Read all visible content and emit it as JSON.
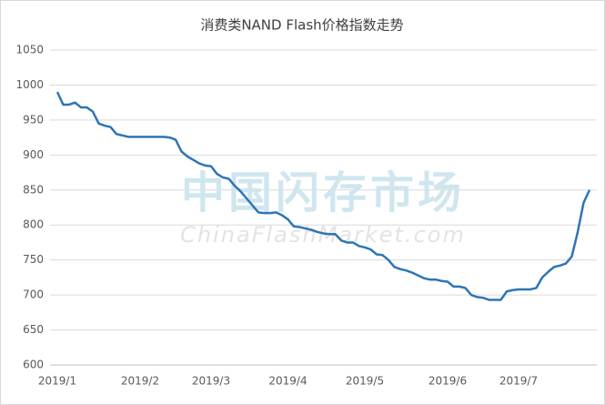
{
  "chart_data": {
    "type": "line",
    "title": "消费类NAND Flash价格指数走势",
    "watermark": "中国闪存市场",
    "watermark_subtitle": "ChinaFlashMarket.com",
    "categories": [
      "2019/1",
      null,
      null,
      null,
      null,
      null,
      null,
      null,
      null,
      null,
      null,
      null,
      null,
      null,
      "2019/2",
      null,
      null,
      null,
      null,
      null,
      null,
      null,
      null,
      null,
      null,
      null,
      "2019/3",
      null,
      null,
      null,
      null,
      null,
      null,
      null,
      null,
      null,
      null,
      null,
      null,
      "2019/4",
      null,
      null,
      null,
      null,
      null,
      null,
      null,
      null,
      null,
      null,
      null,
      null,
      "2019/5",
      null,
      null,
      null,
      null,
      null,
      null,
      null,
      null,
      null,
      null,
      null,
      null,
      null,
      "2019/6",
      null,
      null,
      null,
      null,
      null,
      null,
      null,
      null,
      null,
      null,
      null,
      "2019/7",
      null,
      null,
      null,
      null,
      null,
      null,
      null,
      null,
      null,
      null,
      null,
      null
    ],
    "series": [
      {
        "name": "价格指数",
        "color": "#2e75b6",
        "values": [
          990,
          972,
          972,
          975,
          968,
          968,
          962,
          945,
          942,
          940,
          930,
          928,
          926,
          926,
          926,
          926,
          926,
          926,
          926,
          925,
          922,
          905,
          898,
          893,
          888,
          885,
          884,
          873,
          868,
          866,
          856,
          848,
          838,
          828,
          818,
          817,
          817,
          818,
          814,
          808,
          798,
          797,
          795,
          793,
          790,
          788,
          787,
          787,
          778,
          775,
          775,
          770,
          768,
          765,
          758,
          757,
          750,
          740,
          737,
          735,
          732,
          728,
          724,
          722,
          722,
          720,
          719,
          712,
          712,
          710,
          700,
          697,
          696,
          693,
          693,
          693,
          705,
          707,
          708,
          708,
          708,
          710,
          725,
          733,
          740,
          742,
          745,
          755,
          790,
          832,
          850
        ]
      }
    ],
    "ylim": [
      600,
      1050
    ],
    "yticks": [
      600,
      650,
      700,
      750,
      800,
      850,
      900,
      950,
      1000,
      1050
    ],
    "grid": true
  }
}
